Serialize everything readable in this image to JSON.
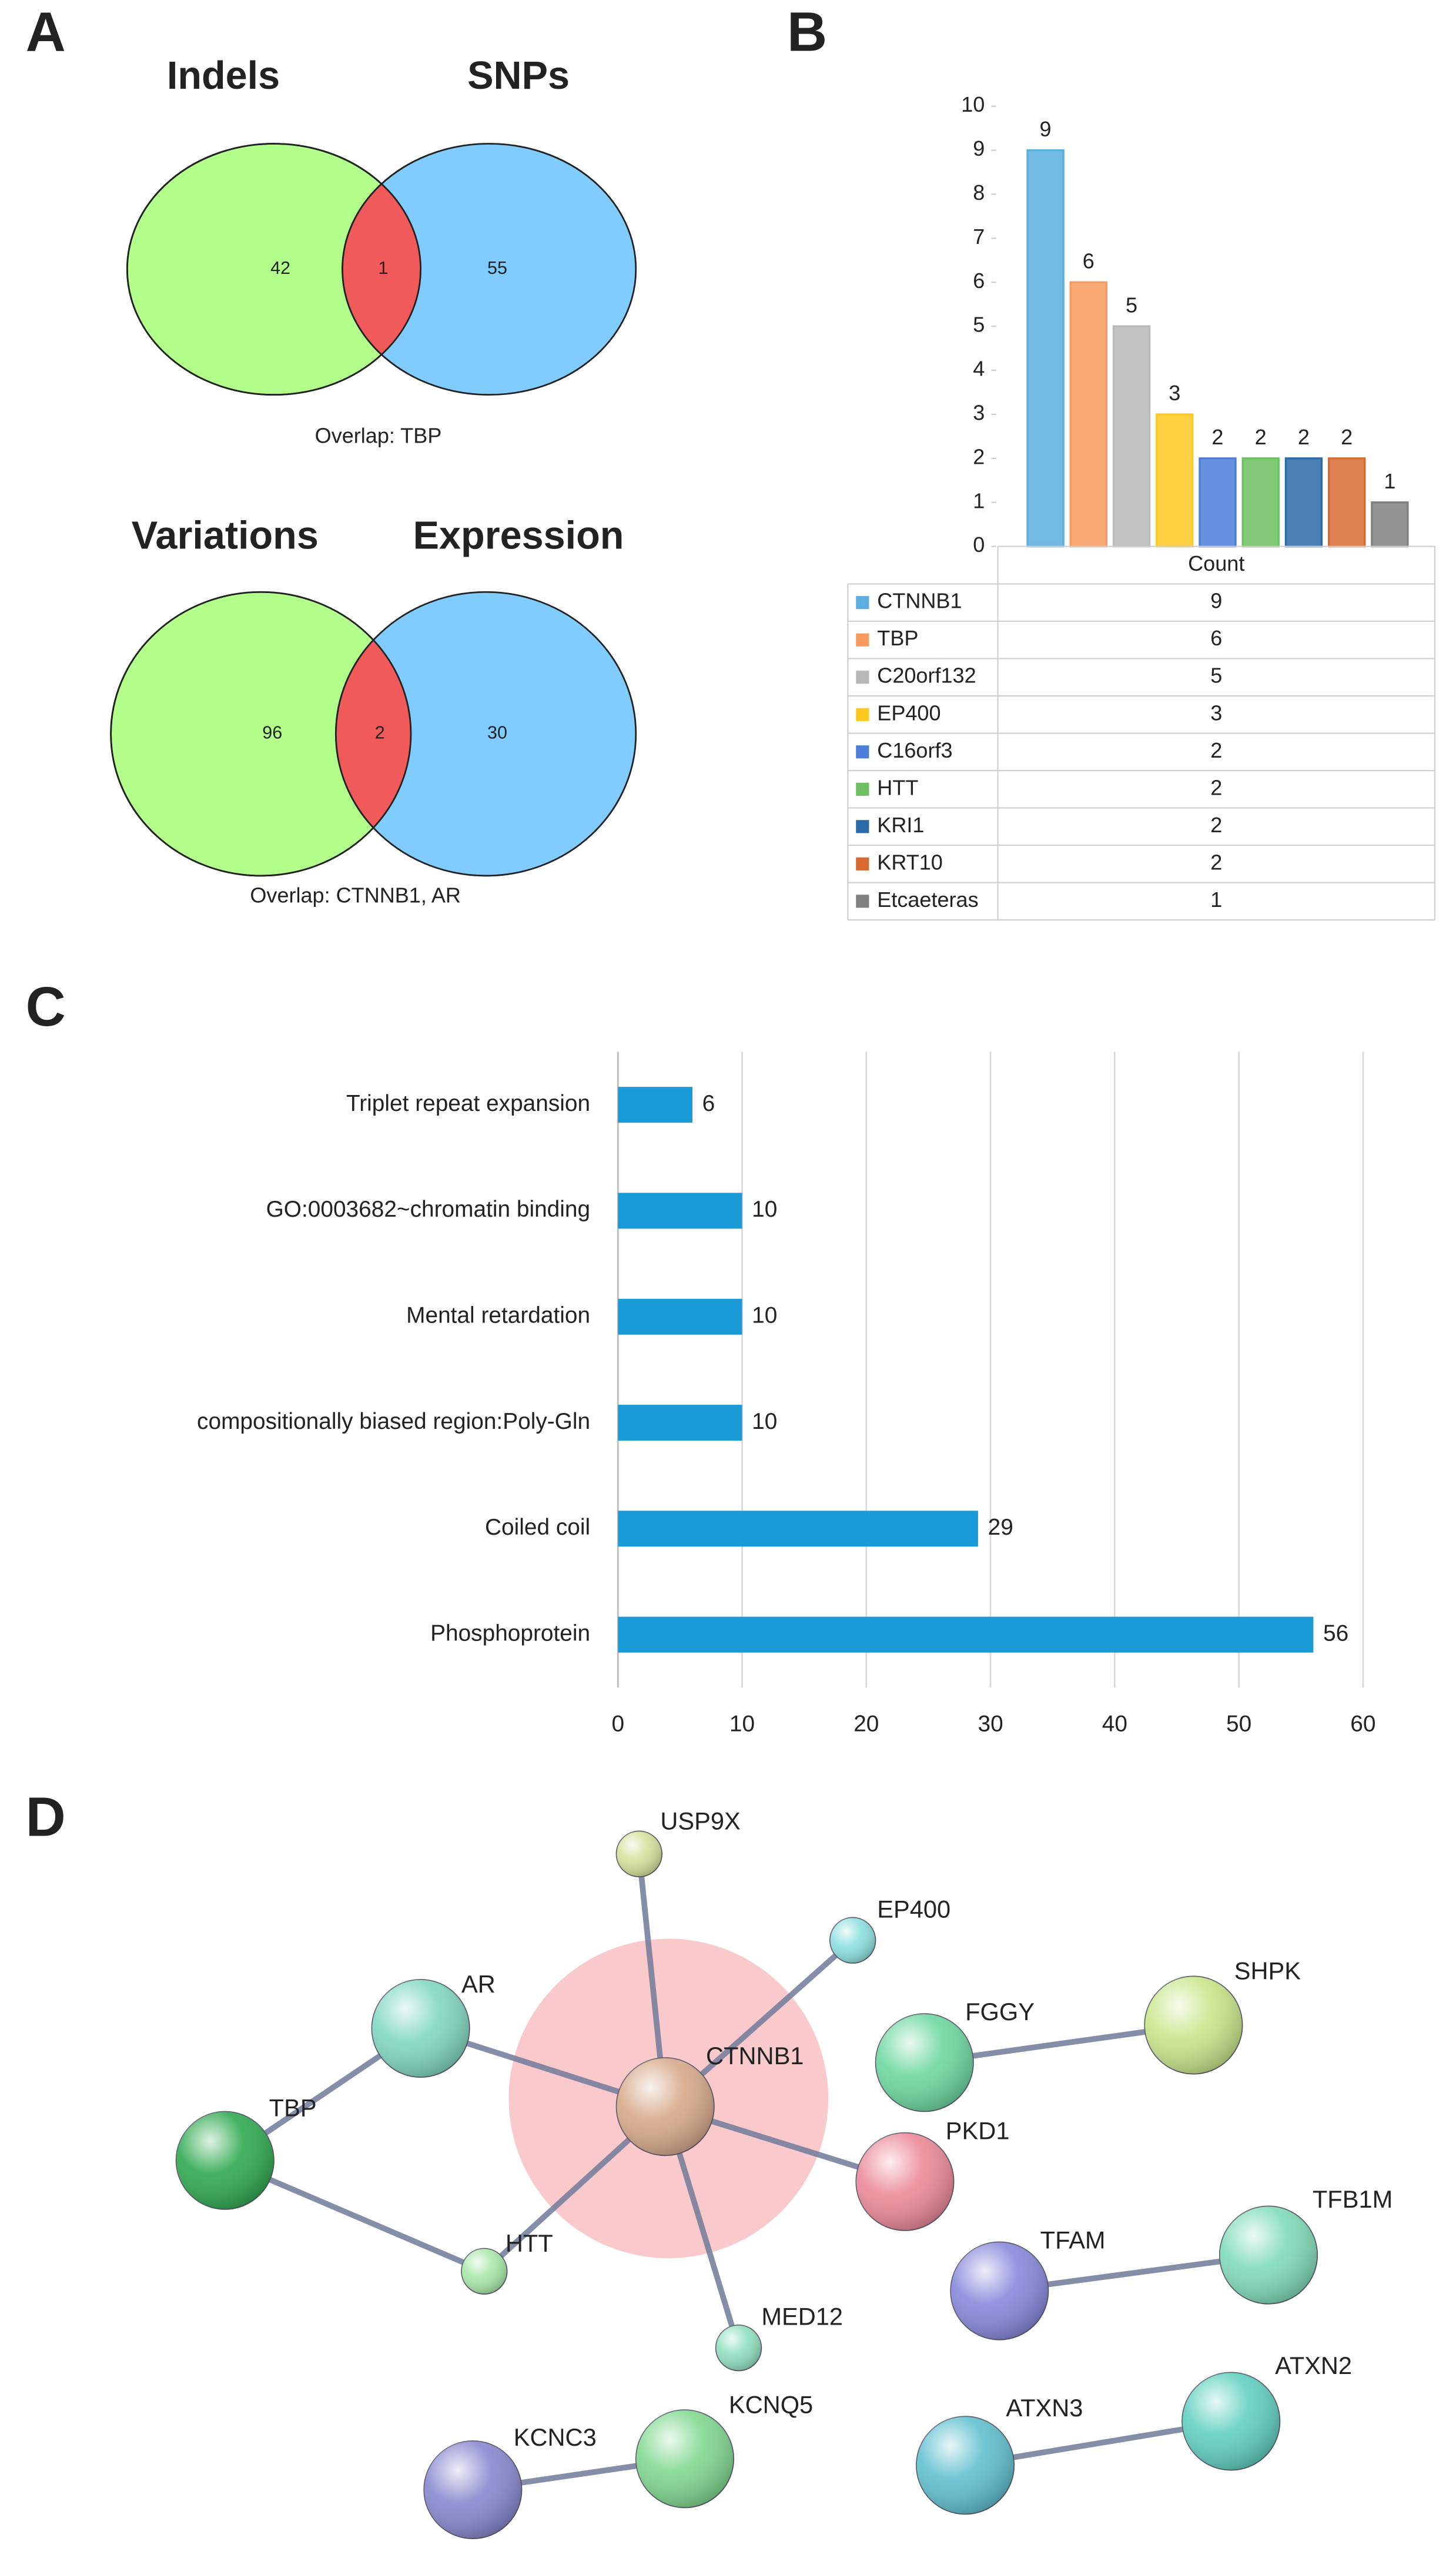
{
  "chart_data": [
    {
      "type": "venn",
      "panel": "A",
      "sets": [
        {
          "name": "Indels",
          "color": "#b3ff8c",
          "value": 42
        },
        {
          "name": "SNPs",
          "color": "#80ccff",
          "value": 55
        }
      ],
      "overlap": 1,
      "overlap_color": "#f05a5a",
      "annotation": "Overlap: TBP"
    },
    {
      "type": "venn",
      "sets": [
        {
          "name": "Variations",
          "color": "#b3ff8c",
          "value": 96
        },
        {
          "name": "Expression",
          "color": "#80ccff",
          "value": 30
        }
      ],
      "overlap": 2,
      "overlap_color": "#f05a5a",
      "annotation": "Overlap: CTNNB1, AR"
    },
    {
      "type": "bar",
      "panel": "B",
      "categories": [
        "CTNNB1",
        "TBP",
        "C20orf132",
        "EP400",
        "C16orf3",
        "HTT",
        "KRI1",
        "KRT10",
        "Etcaeteras"
      ],
      "values": [
        9,
        6,
        5,
        3,
        2,
        2,
        2,
        2,
        1
      ],
      "colors": [
        "#5aaee0",
        "#f79a5e",
        "#b8b8b8",
        "#ffc820",
        "#4a7ed8",
        "#6cc060",
        "#2a6aa8",
        "#d86a30",
        "#808080"
      ],
      "table_header": "Count",
      "ylim": [
        0,
        10
      ],
      "yticks": [
        0,
        1,
        2,
        3,
        4,
        5,
        6,
        7,
        8,
        9,
        10
      ]
    },
    {
      "type": "barh",
      "panel": "C",
      "categories": [
        "Triplet repeat expansion",
        "GO:0003682~chromatin binding",
        "Mental retardation",
        "compositionally biased region:Poly-Gln",
        "Coiled coil",
        "Phosphoprotein"
      ],
      "values": [
        6,
        10,
        10,
        10,
        29,
        56
      ],
      "color": "#1a9ad6",
      "xlim": [
        0,
        60
      ],
      "xticks": [
        0,
        10,
        20,
        30,
        40,
        50,
        60
      ],
      "grid": true
    },
    {
      "type": "network",
      "panel": "D",
      "nodes": [
        {
          "label": "USP9X",
          "color": "#d4e29a"
        },
        {
          "label": "EP400",
          "color": "#8ee0e0"
        },
        {
          "label": "AR",
          "color": "#80d8c0"
        },
        {
          "label": "CTNNB1",
          "color": "#d7a98a"
        },
        {
          "label": "FGGY",
          "color": "#6ed8a0"
        },
        {
          "label": "SHPK",
          "color": "#c8e68a"
        },
        {
          "label": "TBP",
          "color": "#2faa50"
        },
        {
          "label": "PKD1",
          "color": "#ec8a98"
        },
        {
          "label": "HTT",
          "color": "#a8e8a8"
        },
        {
          "label": "TFAM",
          "color": "#8888dd"
        },
        {
          "label": "TFB1M",
          "color": "#80dcb8"
        },
        {
          "label": "MED12",
          "color": "#90e0c0"
        },
        {
          "label": "KCNC3",
          "color": "#8888d0"
        },
        {
          "label": "KCNQ5",
          "color": "#80d890"
        },
        {
          "label": "ATXN3",
          "color": "#60c0d0"
        },
        {
          "label": "ATXN2",
          "color": "#60d0c0"
        }
      ],
      "edges": [
        [
          0,
          3
        ],
        [
          1,
          3
        ],
        [
          2,
          3
        ],
        [
          3,
          7
        ],
        [
          3,
          8
        ],
        [
          3,
          11
        ],
        [
          2,
          6
        ],
        [
          6,
          8
        ],
        [
          4,
          5
        ],
        [
          9,
          10
        ],
        [
          12,
          13
        ],
        [
          14,
          15
        ]
      ]
    }
  ]
}
